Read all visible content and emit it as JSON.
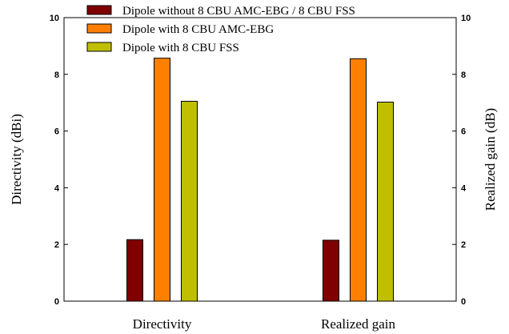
{
  "chart_data": {
    "type": "bar",
    "categories": [
      "Directivity",
      "Realized gain"
    ],
    "series": [
      {
        "name": "Dipole without 8 CBU AMC-EBG / 8 CBU FSS",
        "color": "#7f0000",
        "values": [
          2.17,
          2.15
        ]
      },
      {
        "name": "Dipole with 8 CBU AMC-EBG",
        "color": "#ff8000",
        "values": [
          8.57,
          8.55
        ]
      },
      {
        "name": "Dipole with 8 CBU FSS",
        "color": "#bfbf00",
        "values": [
          7.05,
          7.02
        ]
      }
    ],
    "ylabel": "Directivity (dBi)",
    "y2label": "Realized gain (dB)",
    "ylim": [
      0,
      10
    ],
    "y2lim": [
      0,
      10
    ],
    "yticks": [
      "0",
      "2",
      "4",
      "6",
      "8",
      "10"
    ],
    "y2ticks": [
      "0",
      "2",
      "4",
      "6",
      "8",
      "10"
    ],
    "legend_position": "top-left",
    "grid": false
  }
}
